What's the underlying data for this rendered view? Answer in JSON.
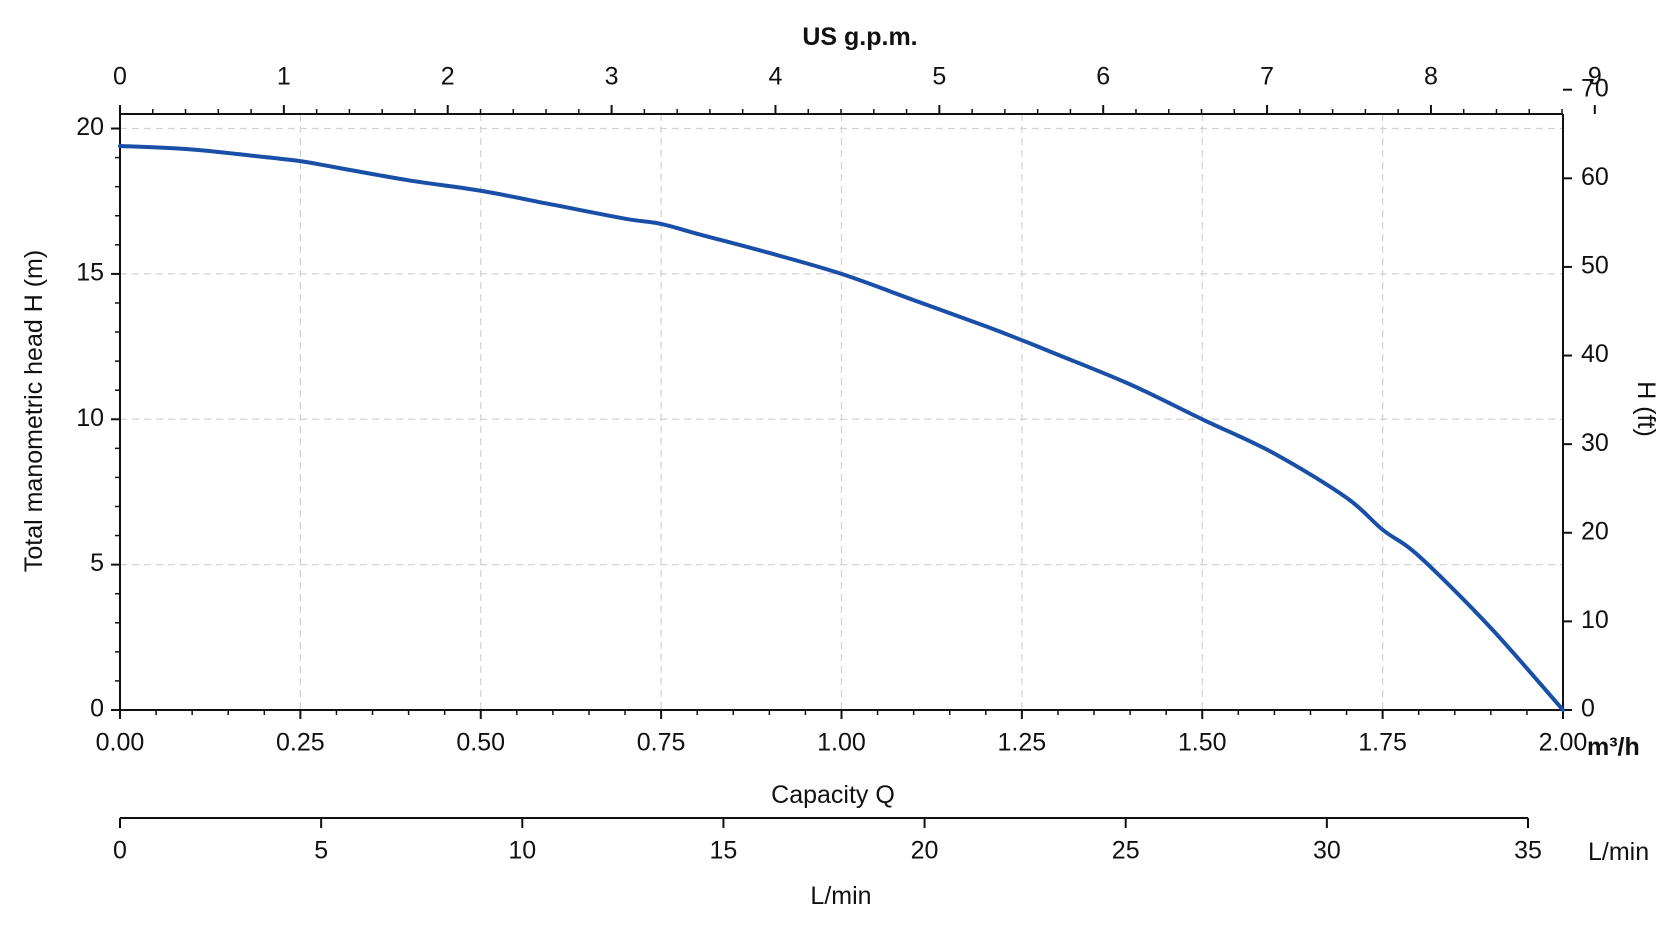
{
  "chart_data": {
    "type": "line",
    "title": "",
    "xlabel": "Capacity Q",
    "x_unit_label": "m³/h",
    "ylabel": "Total manometric head H (m)",
    "x_range": [
      0,
      2.0
    ],
    "ylim": [
      0,
      20.5
    ],
    "x_ticks": [
      "0.00",
      "0.25",
      "0.50",
      "0.75",
      "1.00",
      "1.25",
      "1.50",
      "1.75",
      "2.00"
    ],
    "x_tick_values": [
      0,
      0.25,
      0.5,
      0.75,
      1.0,
      1.25,
      1.5,
      1.75,
      2.0
    ],
    "y_ticks": [
      "0",
      "5",
      "10",
      "15",
      "20"
    ],
    "y_tick_values": [
      0,
      5,
      10,
      15,
      20
    ],
    "grid": true,
    "legend": "none",
    "top_axis": {
      "label": "US g.p.m.",
      "ticks": [
        "0",
        "1",
        "2",
        "3",
        "4",
        "5",
        "6",
        "7",
        "8",
        "9"
      ],
      "tick_values": [
        0,
        1,
        2,
        3,
        4,
        5,
        6,
        7,
        8,
        9
      ],
      "m3h_per_unit": 0.22712
    },
    "right_axis": {
      "label": "H (ft)",
      "ticks": [
        "0",
        "10",
        "20",
        "30",
        "40",
        "50",
        "60",
        "70"
      ],
      "tick_values": [
        0,
        10,
        20,
        30,
        40,
        50,
        60,
        70
      ],
      "m_per_unit": 0.3048
    },
    "bottom_secondary_axis": {
      "label": "L/min",
      "unit_label": "L/min",
      "ticks": [
        "0",
        "5",
        "10",
        "15",
        "20",
        "25",
        "30",
        "35"
      ],
      "tick_values": [
        0,
        5,
        10,
        15,
        20,
        25,
        30,
        35
      ],
      "range": [
        0,
        35
      ]
    },
    "series": [
      {
        "color": "#1a4fa8",
        "x": [
          0,
          0.1,
          0.2,
          0.25,
          0.3,
          0.4,
          0.5,
          0.6,
          0.7,
          0.75,
          0.8,
          0.9,
          1.0,
          1.1,
          1.2,
          1.25,
          1.3,
          1.4,
          1.5,
          1.6,
          1.7,
          1.75,
          1.8,
          1.9,
          2.0
        ],
        "y": [
          19.4,
          19.28,
          19.02,
          18.88,
          18.66,
          18.22,
          17.86,
          17.38,
          16.9,
          16.72,
          16.38,
          15.72,
          15.0,
          14.1,
          13.2,
          12.72,
          12.22,
          11.2,
          10.0,
          8.82,
          7.3,
          6.2,
          5.3,
          2.82,
          0.0
        ]
      }
    ]
  }
}
